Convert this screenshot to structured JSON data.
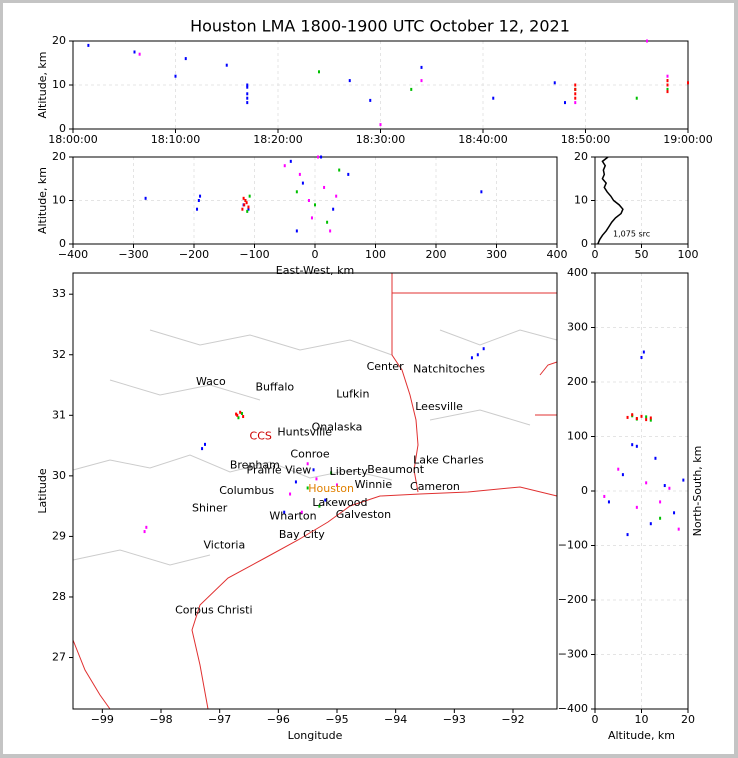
{
  "title": "Houston LMA 1800-1900 UTC October 12, 2021",
  "chart_data": [
    {
      "type": "scatter",
      "ylabel": "Altitude, km",
      "xlim": [
        "18:00:00",
        "19:00:00"
      ],
      "xticks": [
        "18:00:00",
        "18:10:00",
        "18:20:00",
        "18:30:00",
        "18:40:00",
        "18:50:00",
        "19:00:00"
      ],
      "ylim": [
        0,
        20
      ],
      "yticks": [
        0,
        10,
        20
      ],
      "grid": true,
      "series": [
        {
          "color": "#0000ff",
          "x": [
            "18:01:30",
            "18:06:00",
            "18:10:00",
            "18:11:00",
            "18:15:00",
            "18:17:00",
            "18:17:00",
            "18:17:00",
            "18:17:00",
            "18:17:00",
            "18:27:00",
            "18:29:00",
            "18:34:00",
            "18:41:00",
            "18:47:00",
            "18:48:00"
          ],
          "values": [
            19,
            17.5,
            12,
            16,
            14.5,
            6,
            8,
            9.5,
            10,
            7,
            11,
            6.5,
            14,
            7,
            10.5,
            6
          ]
        },
        {
          "color": "#00c000",
          "x": [
            "18:24:00",
            "18:33:00",
            "18:49:00",
            "18:58:00",
            "18:58:00",
            "18:55:00"
          ],
          "values": [
            13,
            9,
            9,
            11,
            9,
            7
          ]
        },
        {
          "color": "#ff00ff",
          "x": [
            "18:06:30",
            "18:30:00",
            "18:34:00",
            "18:56:00",
            "18:49:00",
            "18:58:00"
          ],
          "values": [
            17,
            1,
            11,
            20,
            6,
            12
          ]
        },
        {
          "color": "#ff0000",
          "x": [
            "18:49:00",
            "18:49:00",
            "18:49:00",
            "18:49:00",
            "18:58:00",
            "18:58:00",
            "18:58:00",
            "19:00:00"
          ],
          "values": [
            7,
            8,
            9,
            10,
            8.5,
            10,
            11,
            10.5
          ]
        }
      ]
    },
    {
      "type": "scatter",
      "xlabel": "East-West, km",
      "ylabel": "Altitude, km",
      "xlim": [
        -400,
        400
      ],
      "xticks": [
        {
          "value": -400,
          "label": "−400"
        },
        {
          "value": -300,
          "label": "−300"
        },
        {
          "value": -200,
          "label": "−200"
        },
        {
          "value": -100,
          "label": "−100"
        },
        0,
        100,
        200,
        300,
        400
      ],
      "ylim": [
        0,
        20
      ],
      "yticks": [
        0,
        10,
        20
      ],
      "grid": true,
      "series": [
        {
          "color": "#0000ff",
          "x": [
            -280,
            -195,
            -192,
            -190,
            -118,
            -110,
            275,
            -40,
            -20,
            10,
            30,
            55,
            -30
          ],
          "values": [
            10.5,
            8,
            10,
            11,
            9,
            8,
            12,
            19,
            14,
            20,
            8,
            16,
            3
          ]
        },
        {
          "color": "#00c000",
          "x": [
            -115,
            -112,
            -108,
            -30,
            0,
            20,
            40
          ],
          "values": [
            10,
            7.5,
            11,
            12,
            9,
            5,
            17
          ]
        },
        {
          "color": "#ff00ff",
          "x": [
            -50,
            -25,
            -10,
            5,
            15,
            35,
            25,
            -5
          ],
          "values": [
            18,
            16,
            10,
            20,
            13,
            11,
            3,
            6
          ]
        },
        {
          "color": "#ff0000",
          "x": [
            -120,
            -117,
            -115,
            -113,
            -110,
            -118
          ],
          "values": [
            8,
            9,
            10,
            9.5,
            8.5,
            10.5
          ]
        }
      ]
    },
    {
      "type": "line",
      "annotation": "1,075 src",
      "xlim": [
        0,
        100
      ],
      "xticks": [
        0,
        50,
        100
      ],
      "ylim": [
        0,
        20
      ],
      "yticks": [
        0,
        10,
        20
      ],
      "grid": true,
      "color": "#000000",
      "x": [
        3,
        5,
        8,
        12,
        15,
        18,
        22,
        28,
        30,
        26,
        20,
        17,
        13,
        10,
        12,
        8,
        10,
        9,
        11,
        8,
        14
      ],
      "values": [
        0,
        1,
        2,
        3,
        4,
        5,
        6,
        7,
        8,
        9,
        10,
        11,
        12,
        13,
        14,
        15,
        16,
        17,
        18,
        19,
        20
      ]
    },
    {
      "type": "map",
      "xlabel": "Longitude",
      "ylabel": "Latitude",
      "xlim": [
        -99.5,
        -91.25
      ],
      "xticks": [
        {
          "value": -99,
          "label": "−99"
        },
        {
          "value": -98,
          "label": "−98"
        },
        {
          "value": -97,
          "label": "−97"
        },
        {
          "value": -96,
          "label": "−96"
        },
        {
          "value": -95,
          "label": "−95"
        },
        {
          "value": -94,
          "label": "−94"
        },
        {
          "value": -93,
          "label": "−93"
        },
        {
          "value": -92,
          "label": "−92"
        }
      ],
      "ylim": [
        26.15,
        33.35
      ],
      "yticks": [
        27,
        28,
        29,
        30,
        31,
        32,
        33
      ],
      "grid": false,
      "series": [
        {
          "color": "#0000ff",
          "x": [
            -97.3,
            -97.25,
            -92.7,
            -92.6,
            -92.5,
            -95.7,
            -95.4,
            -95.2,
            -95.9
          ],
          "values": [
            30.45,
            30.52,
            31.95,
            32.0,
            32.1,
            29.9,
            30.1,
            29.6,
            29.4
          ]
        },
        {
          "color": "#00c000",
          "x": [
            -96.62,
            -96.68,
            -95.5,
            -95.1,
            -95.3
          ],
          "values": [
            31.03,
            30.96,
            29.8,
            30.05,
            29.5
          ]
        },
        {
          "color": "#ff00ff",
          "x": [
            -98.28,
            -98.25,
            -95.8,
            -95.6,
            -95.35,
            -95.0,
            -95.5
          ],
          "values": [
            29.08,
            29.15,
            29.7,
            29.4,
            29.95,
            29.85,
            30.2
          ]
        },
        {
          "color": "#ff0000",
          "x": [
            -96.7,
            -96.65,
            -96.6,
            -96.72
          ],
          "values": [
            31.0,
            31.05,
            30.98,
            31.02
          ]
        }
      ],
      "annotations": [
        {
          "text": "Waco",
          "x": -97.15,
          "y": 31.55,
          "color": "#000000"
        },
        {
          "text": "Buffalo",
          "x": -96.06,
          "y": 31.46,
          "color": "#000000"
        },
        {
          "text": "Lufkin",
          "x": -94.73,
          "y": 31.34,
          "color": "#000000"
        },
        {
          "text": "Center",
          "x": -94.18,
          "y": 31.8,
          "color": "#000000"
        },
        {
          "text": "Natchitoches",
          "x": -93.09,
          "y": 31.76,
          "color": "#000000"
        },
        {
          "text": "Leesville",
          "x": -93.26,
          "y": 31.14,
          "color": "#000000"
        },
        {
          "text": "CCS",
          "x": -96.3,
          "y": 30.65,
          "color": "#cc0000"
        },
        {
          "text": "Huntsville",
          "x": -95.55,
          "y": 30.72,
          "color": "#000000"
        },
        {
          "text": "Onalaska",
          "x": -95.0,
          "y": 30.8,
          "color": "#000000"
        },
        {
          "text": "Conroe",
          "x": -95.46,
          "y": 30.35,
          "color": "#000000"
        },
        {
          "text": "Brenham",
          "x": -96.4,
          "y": 30.17,
          "color": "#000000"
        },
        {
          "text": "Prairie View",
          "x": -95.99,
          "y": 30.09,
          "color": "#000000"
        },
        {
          "text": "Liberty",
          "x": -94.8,
          "y": 30.06,
          "color": "#000000"
        },
        {
          "text": "Beaumont",
          "x": -94.0,
          "y": 30.1,
          "color": "#000000"
        },
        {
          "text": "Lake Charles",
          "x": -93.1,
          "y": 30.25,
          "color": "#000000"
        },
        {
          "text": "Winnie",
          "x": -94.38,
          "y": 29.85,
          "color": "#000000"
        },
        {
          "text": "Cameron",
          "x": -93.33,
          "y": 29.82,
          "color": "#000000"
        },
        {
          "text": "Columbus",
          "x": -96.54,
          "y": 29.75,
          "color": "#000000"
        },
        {
          "text": "Houston",
          "x": -95.1,
          "y": 29.78,
          "color": "#e08000"
        },
        {
          "text": "Lakewood",
          "x": -94.95,
          "y": 29.55,
          "color": "#000000"
        },
        {
          "text": "Shiner",
          "x": -97.17,
          "y": 29.46,
          "color": "#000000"
        },
        {
          "text": "Wharton",
          "x": -95.75,
          "y": 29.33,
          "color": "#000000"
        },
        {
          "text": "Galveston",
          "x": -94.55,
          "y": 29.35,
          "color": "#000000"
        },
        {
          "text": "Bay City",
          "x": -95.6,
          "y": 29.02,
          "color": "#000000"
        },
        {
          "text": "Victoria",
          "x": -96.92,
          "y": 28.85,
          "color": "#000000"
        },
        {
          "text": "Corpus Christi",
          "x": -97.1,
          "y": 27.78,
          "color": "#000000"
        }
      ]
    },
    {
      "type": "scatter",
      "xlabel": "Altitude, km",
      "ylabel": "North-South, km",
      "xlim": [
        0,
        20
      ],
      "xticks": [
        0,
        10,
        20
      ],
      "ylim": [
        -400,
        400
      ],
      "yticks": [
        {
          "value": -400,
          "label": "−400"
        },
        {
          "value": -300,
          "label": "−300"
        },
        {
          "value": -200,
          "label": "−200"
        },
        {
          "value": -100,
          "label": "−100"
        },
        0,
        100,
        200,
        300,
        400
      ],
      "grid": true,
      "series": [
        {
          "color": "#0000ff",
          "x": [
            8,
            9,
            10,
            10.5,
            3,
            6,
            12,
            15,
            17,
            19,
            7,
            13
          ],
          "values": [
            85,
            82,
            245,
            255,
            -20,
            30,
            -60,
            10,
            -40,
            20,
            -80,
            60
          ]
        },
        {
          "color": "#00c000",
          "x": [
            8,
            9,
            11,
            12,
            14
          ],
          "values": [
            138,
            132,
            136,
            130,
            -50
          ]
        },
        {
          "color": "#ff00ff",
          "x": [
            2,
            5,
            9,
            16,
            18,
            11,
            14
          ],
          "values": [
            -10,
            40,
            -30,
            5,
            -70,
            15,
            -20
          ]
        },
        {
          "color": "#ff0000",
          "x": [
            7,
            8,
            9,
            10,
            11,
            12
          ],
          "values": [
            135,
            140,
            133,
            137,
            131,
            134
          ]
        }
      ]
    }
  ]
}
